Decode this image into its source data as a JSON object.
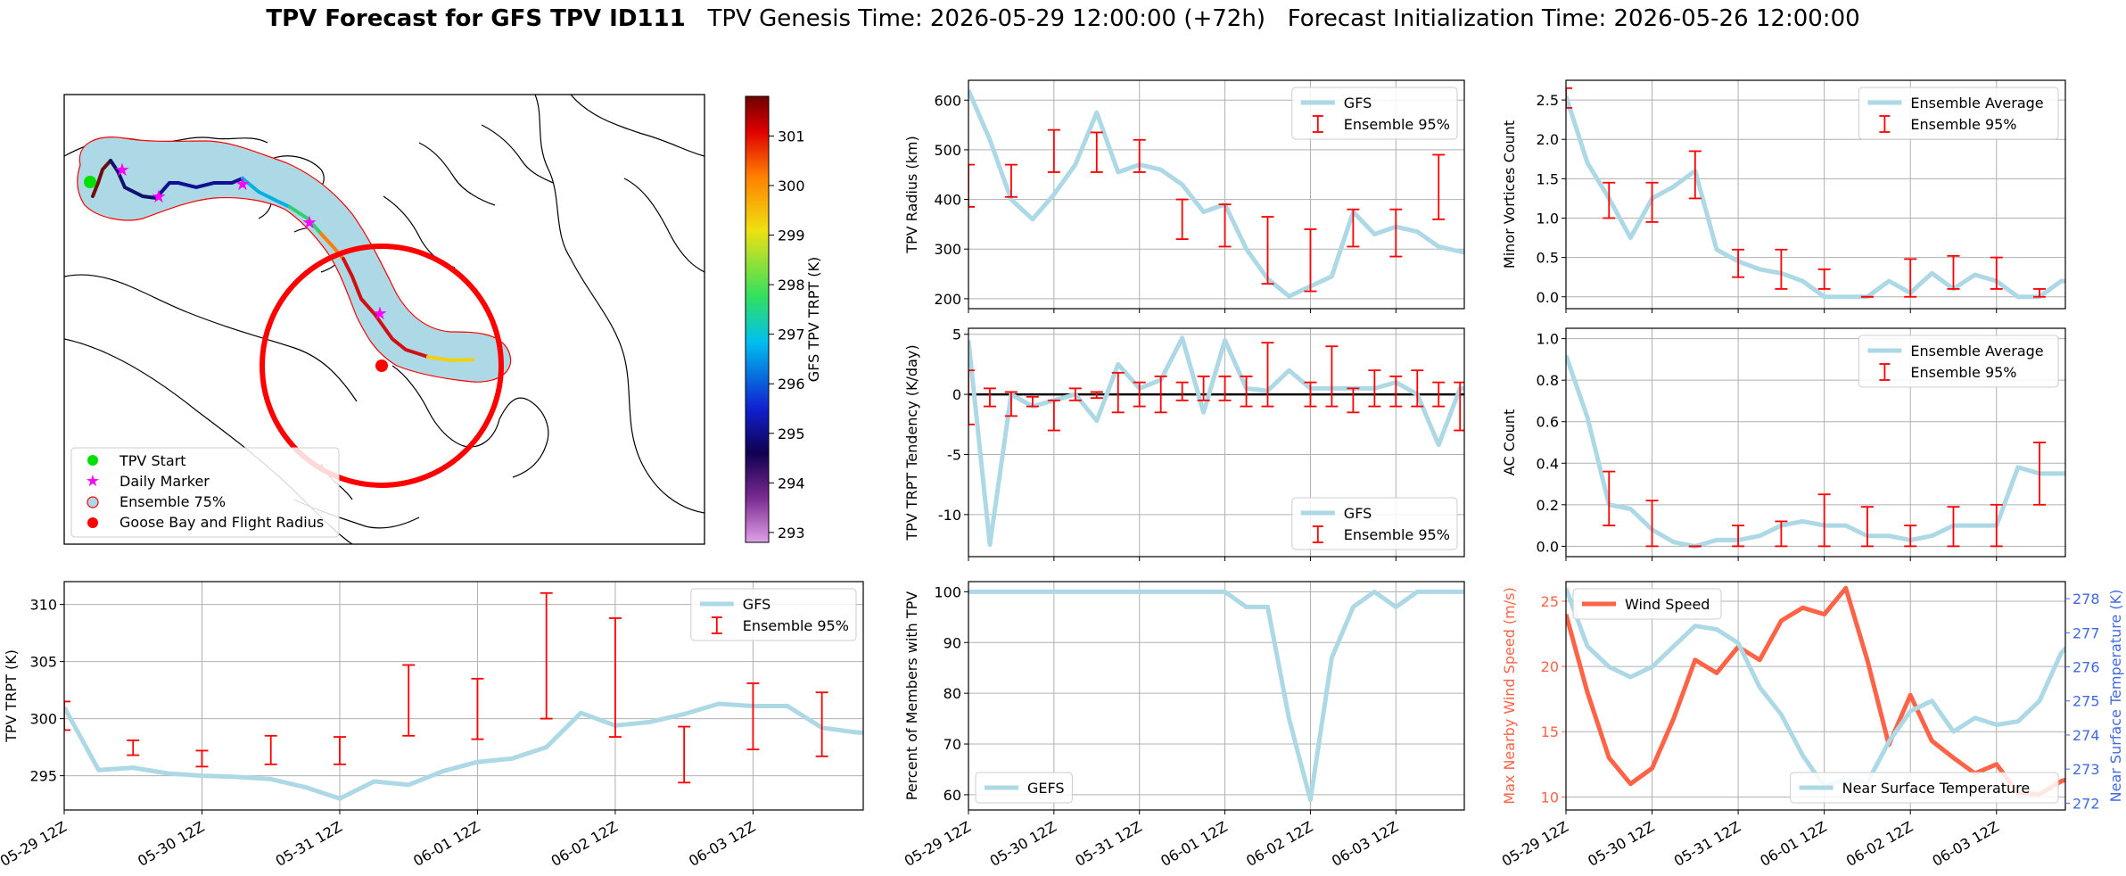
{
  "title": {
    "bold": "TPV Forecast for GFS TPV ID111",
    "genesis": "TPV Genesis Time: 2026-05-29 12:00:00 (+72h)",
    "init": "Forecast Initialization Time: 2026-05-26 12:00:00"
  },
  "colors": {
    "gfs": "#add8e6",
    "ensemble": "#ff0000",
    "wind": "#ff6347",
    "temp": "#add8e6",
    "temp_axis": "#4169e1",
    "zero_line": "#000000"
  },
  "map": {
    "colorbar": {
      "label": "GFS TPV TRPT (K)",
      "ticks": [
        293,
        294,
        295,
        296,
        297,
        298,
        299,
        300,
        301
      ],
      "range": [
        292.8,
        301.8
      ]
    },
    "legend": [
      "TPV Start",
      "Daily Marker",
      "Ensemble 75%",
      "Goose Bay and Flight Radius"
    ]
  },
  "chart_data": [
    {
      "id": "trpt",
      "type": "line",
      "ylabel": "TPV TRPT (K)",
      "ylim": [
        292,
        312
      ],
      "yticks": [
        295,
        300,
        305,
        310
      ],
      "xlim": [
        0,
        5.8
      ],
      "xticks": [
        "05-29 12Z",
        "05-30 12Z",
        "05-31 12Z",
        "06-01 12Z",
        "06-02 12Z",
        "06-03 12Z"
      ],
      "legend": [
        "GFS",
        "Ensemble 95%"
      ],
      "series": [
        {
          "name": "GFS",
          "x": [
            0,
            0.25,
            0.5,
            0.75,
            1,
            1.25,
            1.5,
            1.75,
            2,
            2.25,
            2.5,
            2.75,
            3,
            3.25,
            3.5,
            3.75,
            4,
            4.25,
            4.5,
            4.75,
            5,
            5.25,
            5.5,
            5.75,
            5.9
          ],
          "y": [
            301.0,
            295.5,
            295.7,
            295.2,
            295.0,
            294.9,
            294.7,
            294.0,
            293.0,
            294.5,
            294.2,
            295.4,
            296.2,
            296.5,
            297.5,
            300.5,
            299.4,
            299.7,
            300.4,
            301.3,
            301.1,
            301.1,
            299.2,
            298.8,
            298.7
          ]
        }
      ],
      "errorbars": [
        {
          "x": 0,
          "lo": 299,
          "hi": 301.5
        },
        {
          "x": 0.5,
          "lo": 296.8,
          "hi": 298.1
        },
        {
          "x": 1,
          "lo": 295.8,
          "hi": 297.2
        },
        {
          "x": 1.5,
          "lo": 296.0,
          "hi": 298.5
        },
        {
          "x": 2,
          "lo": 296.0,
          "hi": 298.4
        },
        {
          "x": 2.5,
          "lo": 298.5,
          "hi": 304.7
        },
        {
          "x": 3,
          "lo": 298.2,
          "hi": 303.5
        },
        {
          "x": 3.5,
          "lo": 300.0,
          "hi": 311.0
        },
        {
          "x": 4,
          "lo": 298.4,
          "hi": 308.8
        },
        {
          "x": 4.5,
          "lo": 294.4,
          "hi": 299.3
        },
        {
          "x": 5,
          "lo": 297.3,
          "hi": 303.1
        },
        {
          "x": 5.5,
          "lo": 296.7,
          "hi": 302.3
        }
      ]
    },
    {
      "id": "radius",
      "type": "line",
      "ylabel": "TPV Radius (km)",
      "ylim": [
        180,
        640
      ],
      "yticks": [
        200,
        300,
        400,
        500,
        600
      ],
      "xlim": [
        0,
        5.8
      ],
      "legend": [
        "GFS",
        "Ensemble 95%"
      ],
      "series": [
        {
          "name": "GFS",
          "x": [
            0,
            0.25,
            0.5,
            0.75,
            1,
            1.25,
            1.5,
            1.75,
            2,
            2.25,
            2.5,
            2.75,
            3,
            3.25,
            3.5,
            3.75,
            4,
            4.25,
            4.5,
            4.75,
            5,
            5.25,
            5.5,
            5.75,
            5.9
          ],
          "y": [
            620,
            520,
            400,
            360,
            410,
            470,
            575,
            455,
            470,
            460,
            430,
            375,
            390,
            300,
            240,
            205,
            225,
            245,
            375,
            330,
            345,
            335,
            305,
            295,
            290
          ]
        }
      ],
      "errorbars": [
        {
          "x": 0,
          "lo": 385,
          "hi": 470
        },
        {
          "x": 0.5,
          "lo": 405,
          "hi": 470
        },
        {
          "x": 1,
          "lo": 455,
          "hi": 540
        },
        {
          "x": 1.5,
          "lo": 455,
          "hi": 535
        },
        {
          "x": 2,
          "lo": 455,
          "hi": 520
        },
        {
          "x": 2.5,
          "lo": 320,
          "hi": 400
        },
        {
          "x": 3,
          "lo": 305,
          "hi": 390
        },
        {
          "x": 3.5,
          "lo": 230,
          "hi": 365
        },
        {
          "x": 4,
          "lo": 215,
          "hi": 340
        },
        {
          "x": 4.5,
          "lo": 305,
          "hi": 380
        },
        {
          "x": 5,
          "lo": 285,
          "hi": 380
        },
        {
          "x": 5.5,
          "lo": 360,
          "hi": 490
        }
      ]
    },
    {
      "id": "tendency",
      "type": "line",
      "ylabel": "TPV TRPT Tendency (K/day)",
      "ylim": [
        -13.5,
        5.5
      ],
      "yticks": [
        -10,
        -5,
        0,
        5
      ],
      "xlim": [
        0,
        5.8
      ],
      "legend": [
        "GFS",
        "Ensemble 95%"
      ],
      "series": [
        {
          "name": "GFS",
          "x": [
            0,
            0.25,
            0.5,
            0.75,
            1,
            1.25,
            1.5,
            1.75,
            2,
            2.25,
            2.5,
            2.75,
            3,
            3.25,
            3.5,
            3.75,
            4,
            4.25,
            4.5,
            4.75,
            5,
            5.25,
            5.5,
            5.75,
            5.9
          ],
          "y": [
            4.5,
            -12.5,
            0,
            -1.0,
            -0.5,
            0,
            -2.2,
            2.5,
            0.5,
            1.2,
            4.7,
            -1.5,
            4.5,
            0.5,
            0.3,
            2.0,
            0.5,
            0.5,
            0.5,
            0.5,
            1.0,
            0,
            -4.2,
            0.5,
            0.5
          ]
        }
      ],
      "errorbars": [
        {
          "x": 0,
          "lo": -2.5,
          "hi": 2.0
        },
        {
          "x": 0.25,
          "lo": -1.0,
          "hi": 0.5
        },
        {
          "x": 0.5,
          "lo": -1.8,
          "hi": 0.2
        },
        {
          "x": 0.75,
          "lo": -1.0,
          "hi": -0.2
        },
        {
          "x": 1,
          "lo": -3.0,
          "hi": -0.5
        },
        {
          "x": 1.25,
          "lo": -0.5,
          "hi": 0.5
        },
        {
          "x": 1.5,
          "lo": -0.3,
          "hi": 0.2
        },
        {
          "x": 1.75,
          "lo": -1.5,
          "hi": 1.8
        },
        {
          "x": 2,
          "lo": -1.0,
          "hi": 1.0
        },
        {
          "x": 2.25,
          "lo": -1.5,
          "hi": 1.5
        },
        {
          "x": 2.5,
          "lo": -0.5,
          "hi": 1.0
        },
        {
          "x": 2.75,
          "lo": -0.5,
          "hi": 1.5
        },
        {
          "x": 3,
          "lo": -0.5,
          "hi": 1.5
        },
        {
          "x": 3.25,
          "lo": -1.0,
          "hi": 1.5
        },
        {
          "x": 3.5,
          "lo": -1.0,
          "hi": 4.3
        },
        {
          "x": 4,
          "lo": -1.0,
          "hi": 1.0
        },
        {
          "x": 4.25,
          "lo": -1.0,
          "hi": 4.0
        },
        {
          "x": 4.5,
          "lo": -1.5,
          "hi": 0.5
        },
        {
          "x": 4.75,
          "lo": -1.0,
          "hi": 2.0
        },
        {
          "x": 5,
          "lo": -1.0,
          "hi": 1.5
        },
        {
          "x": 5.25,
          "lo": -1.0,
          "hi": 2.0
        },
        {
          "x": 5.5,
          "lo": -1.0,
          "hi": 1.0
        },
        {
          "x": 5.75,
          "lo": -3.0,
          "hi": 1.0
        }
      ]
    },
    {
      "id": "members",
      "type": "line",
      "ylabel": "Percent of Members with TPV",
      "ylim": [
        57,
        102
      ],
      "yticks": [
        60,
        70,
        80,
        90,
        100
      ],
      "xlim": [
        0,
        5.8
      ],
      "legend": [
        "GEFS"
      ],
      "series": [
        {
          "name": "GEFS",
          "x": [
            0,
            0.5,
            1,
            1.5,
            2,
            2.5,
            3,
            3.25,
            3.5,
            3.75,
            4,
            4.25,
            4.5,
            4.75,
            5,
            5.25,
            5.5,
            5.75,
            5.9
          ],
          "y": [
            100,
            100,
            100,
            100,
            100,
            100,
            100,
            97,
            97,
            75,
            59,
            87,
            97,
            100,
            97,
            100,
            100,
            100,
            100
          ]
        }
      ]
    },
    {
      "id": "minor",
      "type": "line",
      "ylabel": "Minor Vortices Count",
      "ylim": [
        -0.15,
        2.75
      ],
      "yticks": [
        0.0,
        0.5,
        1.0,
        1.5,
        2.0,
        2.5
      ],
      "xlim": [
        0,
        5.8
      ],
      "legend": [
        "Ensemble Average",
        "Ensemble 95%"
      ],
      "series": [
        {
          "name": "Ensemble Average",
          "x": [
            0,
            0.25,
            0.5,
            0.75,
            1,
            1.25,
            1.5,
            1.75,
            2,
            2.25,
            2.5,
            2.75,
            3,
            3.25,
            3.5,
            3.75,
            4,
            4.25,
            4.5,
            4.75,
            5,
            5.25,
            5.5,
            5.75,
            5.9
          ],
          "y": [
            2.55,
            1.7,
            1.25,
            0.75,
            1.25,
            1.4,
            1.6,
            0.6,
            0.45,
            0.35,
            0.3,
            0.2,
            0.0,
            0.0,
            0.0,
            0.2,
            0.05,
            0.3,
            0.1,
            0.28,
            0.2,
            0.0,
            0.0,
            0.2,
            0.2
          ]
        }
      ],
      "errorbars": [
        {
          "x": 0,
          "lo": 2.4,
          "hi": 2.65
        },
        {
          "x": 0.5,
          "lo": 1.0,
          "hi": 1.45
        },
        {
          "x": 1,
          "lo": 0.95,
          "hi": 1.45
        },
        {
          "x": 1.5,
          "lo": 1.25,
          "hi": 1.85
        },
        {
          "x": 2,
          "lo": 0.25,
          "hi": 0.6
        },
        {
          "x": 2.5,
          "lo": 0.1,
          "hi": 0.6
        },
        {
          "x": 3,
          "lo": 0.1,
          "hi": 0.35
        },
        {
          "x": 3.5,
          "lo": 0.0,
          "hi": 0.0
        },
        {
          "x": 4,
          "lo": 0.0,
          "hi": 0.48
        },
        {
          "x": 4.5,
          "lo": 0.1,
          "hi": 0.52
        },
        {
          "x": 5,
          "lo": 0.1,
          "hi": 0.5
        },
        {
          "x": 5.5,
          "lo": 0.0,
          "hi": 0.1
        }
      ]
    },
    {
      "id": "ac",
      "type": "line",
      "ylabel": "AC Count",
      "ylim": [
        -0.05,
        1.05
      ],
      "yticks": [
        0.0,
        0.2,
        0.4,
        0.6,
        0.8,
        1.0
      ],
      "xlim": [
        0,
        5.8
      ],
      "legend": [
        "Ensemble Average",
        "Ensemble 95%"
      ],
      "series": [
        {
          "name": "Ensemble Average",
          "x": [
            0,
            0.25,
            0.5,
            0.75,
            1,
            1.25,
            1.5,
            1.75,
            2,
            2.25,
            2.5,
            2.75,
            3,
            3.25,
            3.5,
            3.75,
            4,
            4.25,
            4.5,
            4.75,
            5,
            5.25,
            5.5,
            5.75,
            5.9
          ],
          "y": [
            0.92,
            0.62,
            0.2,
            0.18,
            0.08,
            0.02,
            0.0,
            0.03,
            0.03,
            0.05,
            0.1,
            0.12,
            0.1,
            0.1,
            0.05,
            0.05,
            0.03,
            0.05,
            0.1,
            0.1,
            0.1,
            0.38,
            0.35,
            0.35,
            0.35
          ]
        }
      ],
      "errorbars": [
        {
          "x": 0.5,
          "lo": 0.1,
          "hi": 0.36
        },
        {
          "x": 1,
          "lo": 0.0,
          "hi": 0.22
        },
        {
          "x": 1.5,
          "lo": 0.0,
          "hi": 0.0
        },
        {
          "x": 2,
          "lo": 0.0,
          "hi": 0.1
        },
        {
          "x": 2.5,
          "lo": 0.0,
          "hi": 0.12
        },
        {
          "x": 3,
          "lo": 0.0,
          "hi": 0.25
        },
        {
          "x": 3.5,
          "lo": 0.0,
          "hi": 0.19
        },
        {
          "x": 4,
          "lo": 0.0,
          "hi": 0.1
        },
        {
          "x": 4.5,
          "lo": 0.0,
          "hi": 0.19
        },
        {
          "x": 5,
          "lo": 0.0,
          "hi": 0.2
        },
        {
          "x": 5.5,
          "lo": 0.2,
          "hi": 0.5
        }
      ]
    },
    {
      "id": "wind_temp",
      "type": "line",
      "ylabel": "Max Nearby Wind Speed (m/s)",
      "ylabel2": "Near Surface Temperature (K)",
      "ylim": [
        9,
        26.5
      ],
      "yticks": [
        10,
        15,
        20,
        25
      ],
      "ylim2": [
        271.8,
        278.5
      ],
      "yticks2": [
        272,
        273,
        274,
        275,
        276,
        277,
        278
      ],
      "xlim": [
        0,
        5.8
      ],
      "legend": [
        "Wind Speed"
      ],
      "legend2": [
        "Near Surface Temperature"
      ],
      "series": [
        {
          "name": "Wind Speed",
          "x": [
            0,
            0.25,
            0.5,
            0.75,
            1,
            1.25,
            1.5,
            1.75,
            2,
            2.25,
            2.5,
            2.75,
            3,
            3.25,
            3.5,
            3.75,
            4,
            4.25,
            4.5,
            4.75,
            5,
            5.25,
            5.5,
            5.75,
            5.9
          ],
          "y": [
            24.0,
            18.0,
            13.0,
            11.0,
            12.2,
            16.0,
            20.5,
            19.5,
            21.5,
            20.5,
            23.5,
            24.5,
            24.0,
            26.0,
            20.5,
            14.0,
            17.8,
            14.3,
            13.0,
            11.8,
            12.5,
            10.3,
            10.2,
            11.2,
            11.5
          ]
        },
        {
          "name": "Near Surface Temperature",
          "x": [
            0,
            0.25,
            0.5,
            0.75,
            1,
            1.25,
            1.5,
            1.75,
            2,
            2.25,
            2.5,
            2.75,
            3,
            3.25,
            3.5,
            3.75,
            4,
            4.25,
            4.5,
            4.75,
            5,
            5.25,
            5.5,
            5.75,
            5.9
          ],
          "y": [
            278.3,
            276.6,
            276.0,
            275.7,
            276.0,
            276.6,
            277.2,
            277.1,
            276.7,
            275.4,
            274.6,
            273.4,
            272.5,
            272.7,
            272.6,
            273.8,
            274.7,
            275.0,
            274.1,
            274.5,
            274.3,
            274.4,
            275.0,
            276.4,
            276.8
          ]
        }
      ]
    }
  ]
}
